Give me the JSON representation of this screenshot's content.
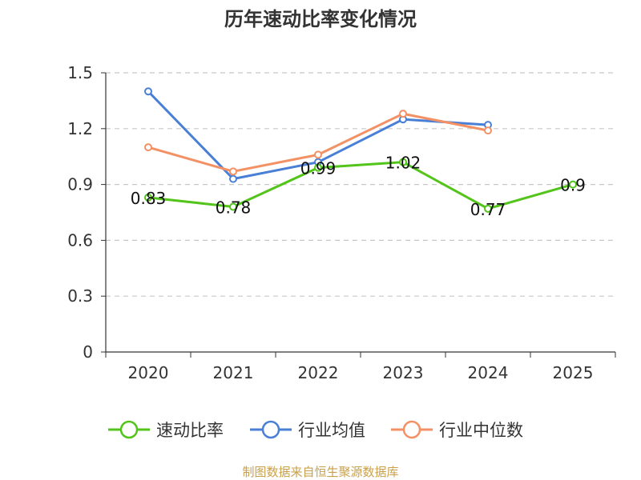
{
  "chart_data": {
    "type": "line",
    "title": "历年速动比率变化情况",
    "categories": [
      "2020",
      "2021",
      "2022",
      "2023",
      "2024",
      "2025"
    ],
    "ylim": [
      0,
      1.5
    ],
    "yticks": [
      0,
      0.3,
      0.6,
      0.9,
      1.2,
      1.5
    ],
    "ytick_labels": [
      "0",
      "0.3",
      "0.6",
      "0.9",
      "1.2",
      "1.5"
    ],
    "grid": true,
    "legend_position": "bottom",
    "series": [
      {
        "name": "速动比率",
        "color": "#52c41a",
        "values": [
          0.83,
          0.78,
          0.99,
          1.02,
          0.77,
          0.9
        ],
        "labels": [
          "0.83",
          "0.78",
          "0.99",
          "1.02",
          "0.77",
          "0.9"
        ]
      },
      {
        "name": "行业均值",
        "color": "#4a7fd6",
        "values": [
          1.4,
          0.93,
          1.02,
          1.25,
          1.22,
          null
        ]
      },
      {
        "name": "行业中位数",
        "color": "#f39165",
        "values": [
          1.1,
          0.97,
          1.06,
          1.28,
          1.19,
          null
        ]
      }
    ],
    "source": "制图数据来自恒生聚源数据库"
  }
}
